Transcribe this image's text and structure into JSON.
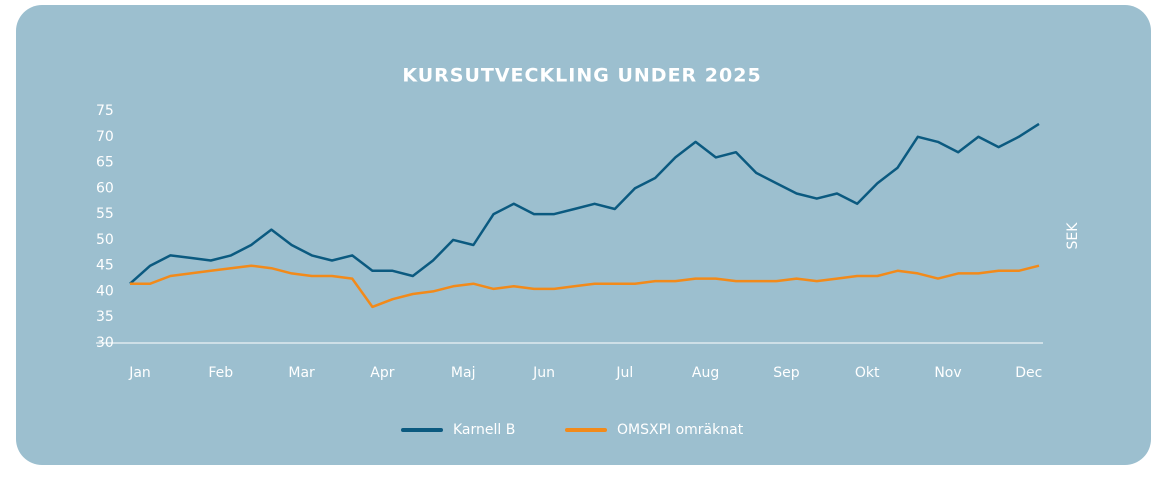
{
  "chart_data": {
    "type": "line",
    "title": "KURSUTVECKLING UNDER 2025",
    "y_label": "SEK",
    "categories": [
      "Jan",
      null,
      null,
      null,
      "Feb",
      null,
      null,
      null,
      "Mar",
      null,
      null,
      null,
      "Apr",
      null,
      null,
      null,
      "Maj",
      null,
      null,
      null,
      "Jun",
      null,
      null,
      null,
      "Jul",
      null,
      null,
      null,
      "Aug",
      null,
      null,
      null,
      "Sep",
      null,
      null,
      null,
      "Okt",
      null,
      null,
      null,
      "Nov",
      null,
      null,
      null,
      "Dec",
      null
    ],
    "series": [
      {
        "name": "Karnell B",
        "color": "#0b5a80",
        "values": [
          41.5,
          45,
          47,
          46.5,
          46,
          47,
          49,
          52,
          49,
          47,
          46,
          47,
          44,
          44,
          43,
          46,
          50,
          49,
          55,
          57,
          55,
          55,
          56,
          57,
          56,
          60,
          62,
          66,
          69,
          66,
          67,
          63,
          61,
          59,
          58,
          59,
          57,
          61,
          64,
          70,
          69,
          67,
          70,
          68,
          70,
          72.5
        ]
      },
      {
        "name": "OMSXPI omräknat",
        "color": "#f28a1a",
        "values": [
          41.5,
          41.5,
          43,
          43.5,
          44,
          44.5,
          45,
          44.5,
          43.5,
          43,
          43,
          42.5,
          37,
          38.5,
          39.5,
          40,
          41,
          41.5,
          40.5,
          41,
          40.5,
          40.5,
          41,
          41.5,
          41.5,
          41.5,
          42,
          42,
          42.5,
          42.5,
          42,
          42,
          42,
          42.5,
          42,
          42.5,
          43,
          43,
          44,
          43.5,
          42.5,
          43.5,
          43.5,
          44,
          44,
          45
        ]
      }
    ],
    "ylim": [
      30,
      75
    ],
    "yticks": [
      30,
      35,
      40,
      45,
      50,
      55,
      60,
      65,
      70,
      75
    ],
    "grid": false,
    "legend": "bottom"
  }
}
